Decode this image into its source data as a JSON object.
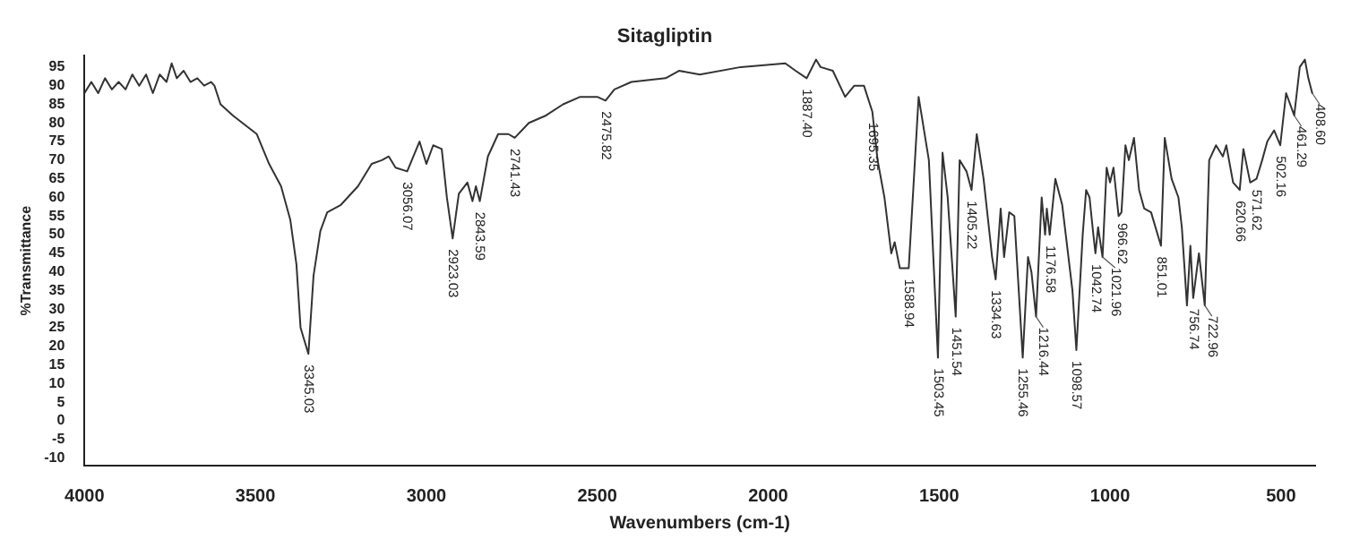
{
  "chart_data": {
    "type": "line",
    "title": "Sitagliptin",
    "xlabel": "Wavenumbers (cm-1)",
    "ylabel": "%Transmittance",
    "xlim": [
      4000,
      400
    ],
    "ylim": [
      -12,
      98
    ],
    "xticks": [
      4000,
      3500,
      3000,
      2500,
      2000,
      1500,
      1000,
      500
    ],
    "yticks": [
      -10,
      -5,
      0,
      5,
      10,
      15,
      20,
      25,
      30,
      35,
      40,
      45,
      50,
      55,
      60,
      65,
      70,
      75,
      80,
      85,
      90,
      95
    ],
    "grid": false,
    "legend": false,
    "marker": "none",
    "line_style": "solid",
    "series": [
      {
        "color": "#333333",
        "x": [
          4000,
          3980,
          3960,
          3940,
          3920,
          3900,
          3880,
          3860,
          3840,
          3820,
          3800,
          3780,
          3760,
          3745,
          3730,
          3710,
          3690,
          3670,
          3650,
          3630,
          3620,
          3602,
          3566,
          3496,
          3460,
          3425,
          3398,
          3380,
          3368,
          3345.03,
          3330,
          3310,
          3290,
          3250,
          3200,
          3160,
          3130,
          3110,
          3090,
          3056.07,
          3020,
          3000,
          2980,
          2955,
          2940,
          2923.03,
          2905,
          2880,
          2865,
          2855,
          2843.59,
          2820,
          2790,
          2760,
          2741.43,
          2700,
          2650,
          2600,
          2550,
          2500,
          2475.82,
          2450,
          2400,
          2300,
          2261,
          2200,
          2080,
          1950,
          1920,
          1887.4,
          1860,
          1847,
          1811,
          1775,
          1748,
          1720,
          1695.35,
          1680,
          1660,
          1640,
          1630,
          1615,
          1588.94,
          1560,
          1530,
          1503.45,
          1490,
          1475,
          1451.54,
          1440,
          1420,
          1405.22,
          1390,
          1370,
          1345,
          1334.63,
          1320,
          1310,
          1295,
          1280,
          1255.46,
          1240,
          1230,
          1216.44,
          1200,
          1190,
          1185,
          1176.58,
          1160,
          1140,
          1110,
          1098.57,
          1080,
          1070,
          1060,
          1050,
          1042.74,
          1035,
          1021.96,
          1010,
          1000,
          990,
          975,
          966.62,
          955,
          945,
          930,
          915,
          900,
          880,
          851.01,
          840,
          820,
          800,
          790,
          775,
          765,
          756.74,
          740,
          722.96,
          710,
          690,
          670,
          660,
          640,
          620.66,
          610,
          590,
          571.62,
          555,
          540,
          520,
          502.16,
          485,
          461.29,
          445,
          430,
          420,
          408.6
        ],
        "values": [
          88,
          91,
          88,
          92,
          89,
          91,
          89,
          93,
          90,
          93,
          88,
          93,
          91,
          96,
          92,
          94,
          91,
          92,
          90,
          91,
          90,
          85,
          82,
          77,
          69,
          63,
          54,
          42,
          25,
          18,
          39,
          51,
          56,
          58,
          63,
          69,
          70,
          71,
          68,
          67,
          75,
          69,
          74,
          73,
          60,
          49,
          61,
          64,
          59,
          63,
          59,
          71,
          77,
          77,
          76,
          80,
          82,
          85,
          87,
          87,
          86,
          89,
          91,
          92,
          94,
          93,
          95,
          96,
          94,
          92,
          97,
          95,
          94,
          87,
          90,
          90,
          83,
          70,
          60,
          45,
          48,
          41,
          41,
          87,
          70,
          17,
          72,
          60,
          28,
          70,
          67,
          62,
          77,
          65,
          44,
          38,
          57,
          44,
          56,
          55,
          17,
          44,
          40,
          28,
          60,
          50,
          57,
          50,
          65,
          58,
          35,
          19,
          50,
          62,
          60,
          51,
          45,
          52,
          44,
          68,
          64,
          68,
          55,
          56,
          74,
          70,
          76,
          62,
          57,
          56,
          47,
          76,
          65,
          60,
          52,
          31,
          47,
          33,
          45,
          31,
          70,
          74,
          71,
          74,
          64,
          62,
          73,
          64,
          65,
          70,
          75,
          78,
          74,
          88,
          82,
          95,
          97,
          92,
          88
        ]
      }
    ],
    "annotations": [
      {
        "text": "3345.03",
        "x": 3345.03,
        "y": 18
      },
      {
        "text": "3056.07",
        "x": 3056.07,
        "y": 67
      },
      {
        "text": "2923.03",
        "x": 2923.03,
        "y": 49
      },
      {
        "text": "2843.59",
        "x": 2843.59,
        "y": 59
      },
      {
        "text": "2741.43",
        "x": 2741.43,
        "y": 76
      },
      {
        "text": "2475.82",
        "x": 2475.82,
        "y": 86
      },
      {
        "text": "1887.40",
        "x": 1887.4,
        "y": 92
      },
      {
        "text": "1695.35",
        "x": 1695.35,
        "y": 83
      },
      {
        "text": "1588.94",
        "x": 1588.94,
        "y": 41
      },
      {
        "text": "1503.45",
        "x": 1503.45,
        "y": 17
      },
      {
        "text": "1451.54",
        "x": 1451.54,
        "y": 28
      },
      {
        "text": "1405.22",
        "x": 1405.22,
        "y": 62
      },
      {
        "text": "1334.63",
        "x": 1334.63,
        "y": 38
      },
      {
        "text": "1255.46",
        "x": 1255.46,
        "y": 17
      },
      {
        "text": "1216.44",
        "x": 1216.44,
        "y": 28
      },
      {
        "text": "1176.58",
        "x": 1176.58,
        "y": 50
      },
      {
        "text": "1098.57",
        "x": 1098.57,
        "y": 19
      },
      {
        "text": "1042.74",
        "x": 1042.74,
        "y": 45
      },
      {
        "text": "1021.96",
        "x": 1021.96,
        "y": 44
      },
      {
        "text": "966.62",
        "x": 966.62,
        "y": 56
      },
      {
        "text": "851.01",
        "x": 851.01,
        "y": 47
      },
      {
        "text": "756.74",
        "x": 756.74,
        "y": 33
      },
      {
        "text": "722.96",
        "x": 722.96,
        "y": 31
      },
      {
        "text": "620.66",
        "x": 620.66,
        "y": 62
      },
      {
        "text": "571.62",
        "x": 571.62,
        "y": 65
      },
      {
        "text": "502.16",
        "x": 502.16,
        "y": 74
      },
      {
        "text": "461.29",
        "x": 461.29,
        "y": 82
      },
      {
        "text": "408.60",
        "x": 408.6,
        "y": 88
      }
    ]
  }
}
